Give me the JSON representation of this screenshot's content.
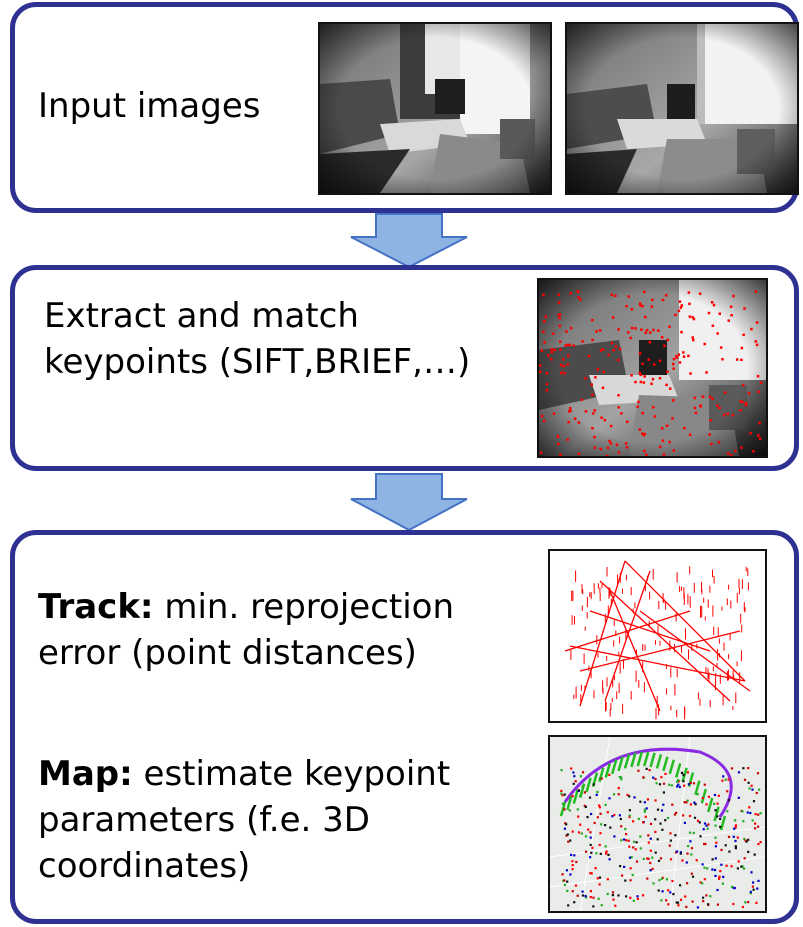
{
  "steps": [
    {
      "text": "Input images",
      "images": [
        "camera-frame-left",
        "camera-frame-right"
      ]
    },
    {
      "text": "Extract and match\nkeypoints (SIFT,BRIEF,…)",
      "images": [
        "keypoint-overlay-frame"
      ]
    },
    {
      "track_label": "Track:",
      "track_text": " min. reprojection\nerror (point distances)",
      "map_label": "Map:",
      "map_text": " estimate keypoint\nparameters (f.e. 3D\ncoordinates)",
      "images": [
        "reprojection-error-plot",
        "3d-map-point-cloud"
      ]
    }
  ],
  "colors": {
    "box_border": "#2e3192",
    "arrow_fill": "#8eb4e3",
    "arrow_stroke": "#4472c4",
    "keypoint": "#ff0000"
  }
}
